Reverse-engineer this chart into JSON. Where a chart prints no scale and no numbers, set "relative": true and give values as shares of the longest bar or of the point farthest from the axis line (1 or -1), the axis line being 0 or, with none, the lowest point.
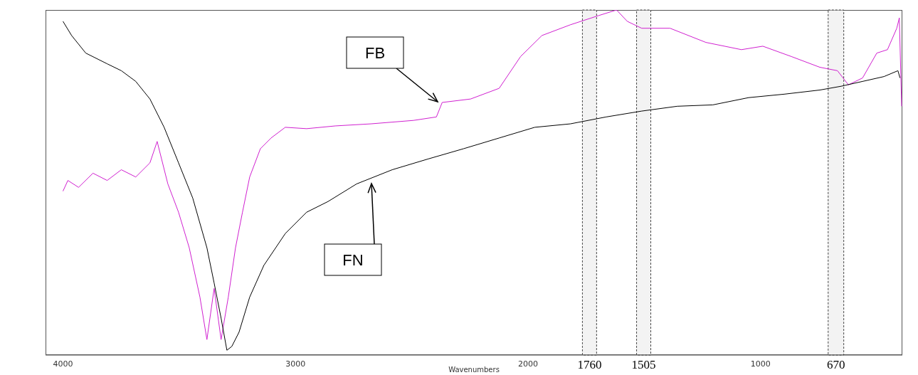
{
  "chart_data": {
    "type": "line",
    "relative": true,
    "xlabel": "Wavenumbers",
    "xlim": [
      4075,
      390
    ],
    "xticks": [
      4000,
      3000,
      2000,
      1000
    ],
    "marker": "none",
    "series": [
      {
        "color": "#d020d0",
        "x": [
          4000,
          3979,
          3933,
          3871,
          3810,
          3749,
          3687,
          3626,
          3595,
          3549,
          3503,
          3457,
          3411,
          3381,
          3350,
          3320,
          3289,
          3258,
          3228,
          3197,
          3151,
          3105,
          3044,
          2952,
          2829,
          2676,
          2492,
          2394,
          2369,
          2247,
          2124,
          2032,
          1940,
          1818,
          1695,
          1619,
          1573,
          1511,
          1389,
          1235,
          1082,
          990,
          867,
          745,
          669,
          622,
          561,
          500,
          454,
          414,
          403,
          393
        ],
        "values": [
          0.475,
          0.506,
          0.486,
          0.527,
          0.506,
          0.537,
          0.516,
          0.557,
          0.619,
          0.496,
          0.414,
          0.311,
          0.168,
          0.045,
          0.193,
          0.045,
          0.168,
          0.311,
          0.414,
          0.516,
          0.598,
          0.629,
          0.66,
          0.656,
          0.664,
          0.67,
          0.68,
          0.69,
          0.732,
          0.742,
          0.773,
          0.865,
          0.926,
          0.957,
          0.984,
          1,
          0.967,
          0.947,
          0.947,
          0.906,
          0.885,
          0.895,
          0.865,
          0.834,
          0.824,
          0.783,
          0.803,
          0.875,
          0.885,
          0.947,
          0.977,
          0.721
        ]
      },
      {
        "color": "#000000",
        "x": [
          4000,
          3963,
          3902,
          3810,
          3749,
          3687,
          3626,
          3565,
          3503,
          3442,
          3381,
          3350,
          3320,
          3295,
          3274,
          3243,
          3197,
          3136,
          3044,
          2952,
          2860,
          2737,
          2584,
          2431,
          2277,
          2124,
          1971,
          1818,
          1664,
          1511,
          1358,
          1205,
          1051,
          898,
          745,
          653,
          561,
          469,
          409,
          400
        ],
        "values": [
          0.967,
          0.926,
          0.875,
          0.844,
          0.824,
          0.793,
          0.742,
          0.66,
          0.557,
          0.455,
          0.311,
          0.209,
          0.107,
          0.014,
          0.025,
          0.066,
          0.168,
          0.26,
          0.352,
          0.414,
          0.445,
          0.496,
          0.537,
          0.568,
          0.598,
          0.629,
          0.66,
          0.67,
          0.69,
          0.707,
          0.721,
          0.725,
          0.746,
          0.756,
          0.768,
          0.779,
          0.793,
          0.807,
          0.824,
          0.803
        ]
      }
    ],
    "annotations": [
      "FB",
      "FN"
    ],
    "bands": [
      {
        "axis": "x",
        "from": 1766,
        "to": 1705,
        "label": "1760",
        "color": "#e8e8e8"
      },
      {
        "axis": "x",
        "from": 1533,
        "to": 1472,
        "label": "1505",
        "color": "#e8e8e8"
      },
      {
        "axis": "x",
        "from": 709,
        "to": 642,
        "label": "670",
        "color": "#e8e8e8"
      }
    ]
  }
}
